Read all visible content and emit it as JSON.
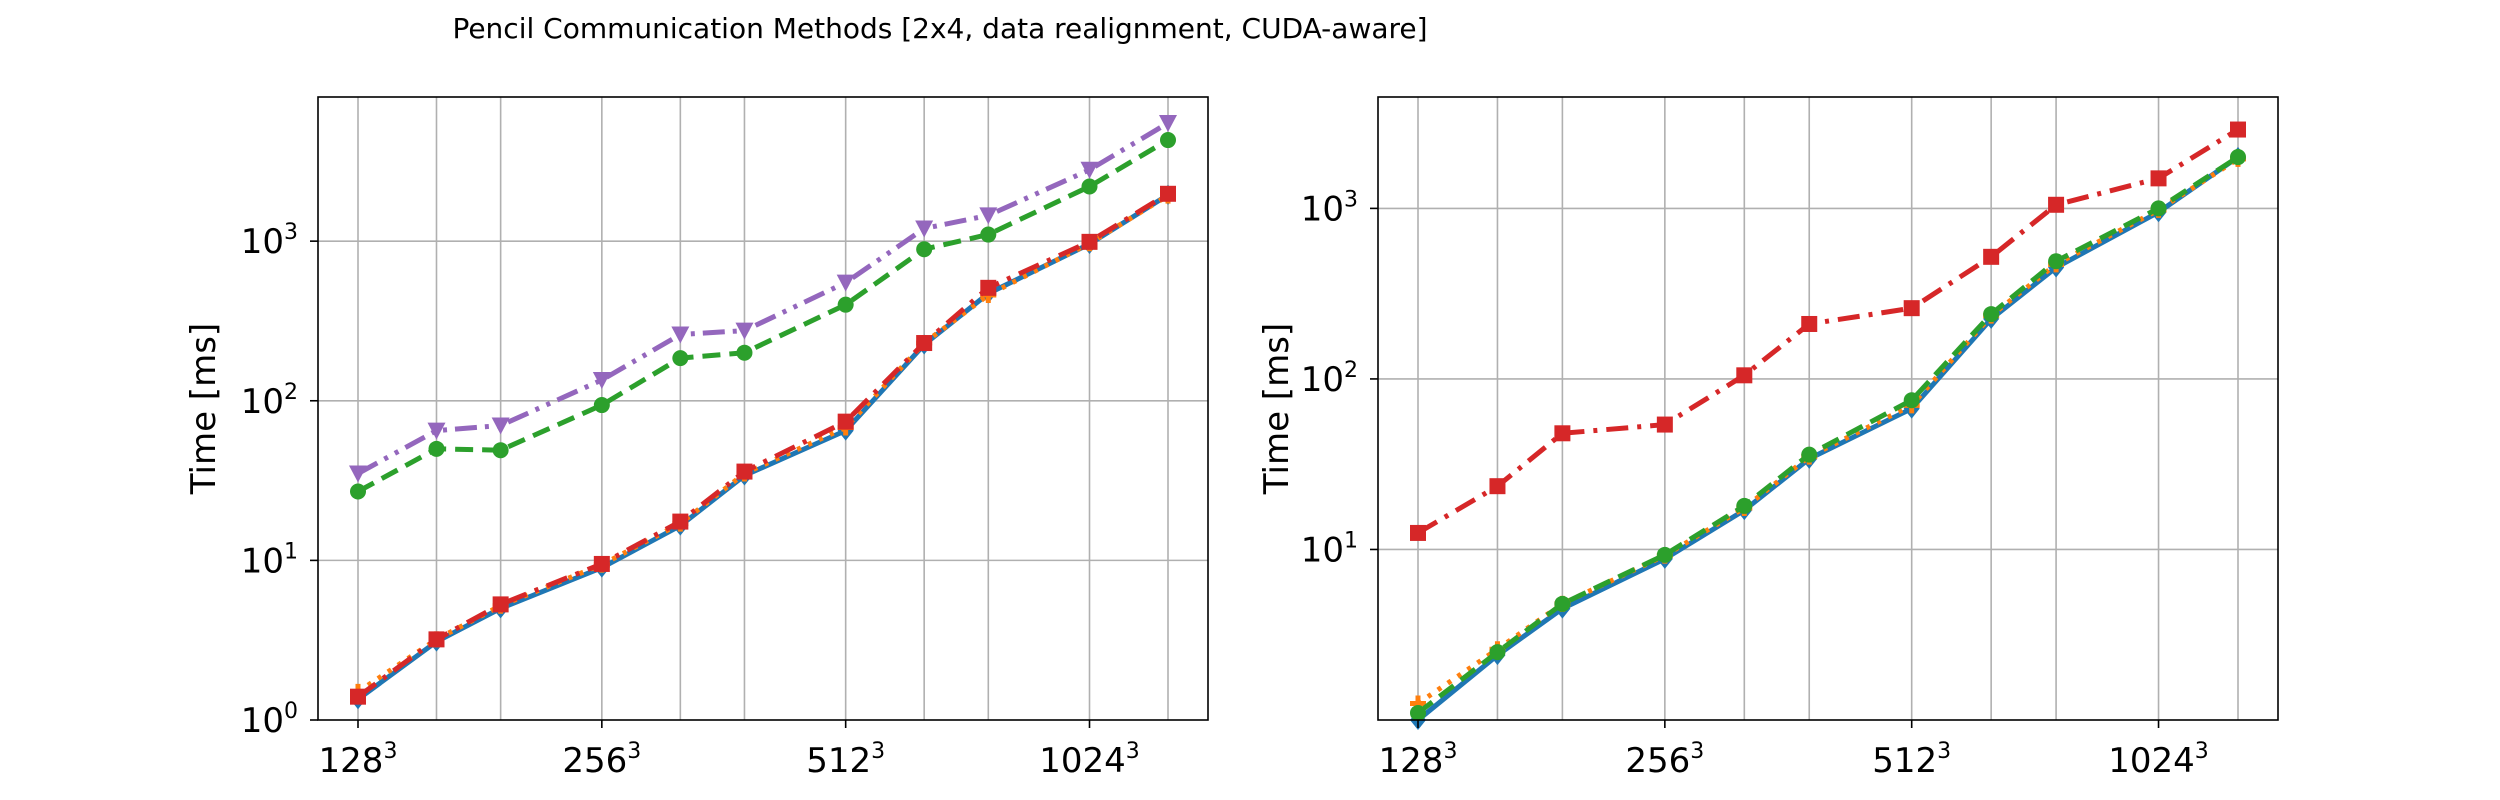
{
  "figure": {
    "title": "Pencil Communication Methods [2x4, data realignment, CUDA-aware]"
  },
  "chart_data": [
    {
      "type": "line",
      "yscale": "log",
      "ylabel": "Time [ms]",
      "ylim": [
        1,
        8000
      ],
      "grid": true,
      "x": [
        128,
        160,
        192,
        256,
        320,
        384,
        512,
        640,
        768,
        1024,
        1280
      ],
      "xticks": [
        {
          "base": "128",
          "exp": "3",
          "x": 128
        },
        {
          "base": "256",
          "exp": "3",
          "x": 256
        },
        {
          "base": "512",
          "exp": "3",
          "x": 512
        },
        {
          "base": "1024",
          "exp": "3",
          "x": 1024
        }
      ],
      "yticks": [
        {
          "base": "10",
          "exp": "0",
          "value": 1
        },
        {
          "base": "10",
          "exp": "1",
          "value": 10
        },
        {
          "base": "10",
          "exp": "2",
          "value": 100
        },
        {
          "base": "10",
          "exp": "3",
          "value": 1000
        }
      ],
      "series": [
        {
          "color": "#1f77b4",
          "dash": "solid",
          "marker": "diamond",
          "values": [
            1.35,
            3.1,
            5.0,
            9.0,
            16.5,
            34,
            65,
            225,
            470,
            960,
            1950
          ]
        },
        {
          "color": "#ff7f0e",
          "dash": "dotted",
          "marker": "plus",
          "values": [
            1.5,
            3.2,
            5.2,
            9.4,
            17.0,
            35,
            68,
            230,
            460,
            970,
            1930
          ]
        },
        {
          "color": "#d62728",
          "dash": "dashdot",
          "marker": "square",
          "values": [
            1.4,
            3.2,
            5.3,
            9.5,
            17.5,
            36,
            74,
            230,
            510,
            990,
            1980
          ]
        },
        {
          "color": "#2ca02c",
          "dash": "dashed",
          "marker": "circle",
          "values": [
            27,
            50,
            49,
            94,
            185,
            200,
            400,
            890,
            1100,
            2200,
            4300
          ]
        },
        {
          "color": "#9467bd",
          "dash": "dashdotdot",
          "marker": "triangle-down",
          "values": [
            35,
            65,
            70,
            135,
            260,
            275,
            550,
            1200,
            1450,
            2800,
            5500
          ]
        }
      ]
    },
    {
      "type": "line",
      "yscale": "log",
      "ylabel": "Time [ms]",
      "ylim": [
        1.0,
        4500
      ],
      "grid": true,
      "x": [
        128,
        160,
        192,
        256,
        320,
        384,
        512,
        640,
        768,
        1024,
        1280
      ],
      "xticks": [
        {
          "base": "128",
          "exp": "3",
          "x": 128
        },
        {
          "base": "256",
          "exp": "3",
          "x": 256
        },
        {
          "base": "512",
          "exp": "3",
          "x": 512
        },
        {
          "base": "1024",
          "exp": "3",
          "x": 1024
        }
      ],
      "yticks": [
        {
          "base": "10",
          "exp": "1",
          "value": 10
        },
        {
          "base": "10",
          "exp": "2",
          "value": 100
        },
        {
          "base": "10",
          "exp": "3",
          "value": 1000
        }
      ],
      "series": [
        {
          "color": "#1f77b4",
          "dash": "solid",
          "marker": "diamond",
          "values": [
            1.0,
            2.4,
            4.5,
            8.8,
            17,
            34,
            67,
            225,
            450,
            950,
            2000
          ]
        },
        {
          "color": "#ff7f0e",
          "dash": "dotted",
          "marker": "plus",
          "values": [
            1.25,
            2.6,
            4.8,
            9.2,
            17.5,
            35,
            70,
            235,
            470,
            980,
            1950
          ]
        },
        {
          "color": "#2ca02c",
          "dash": "dashed",
          "marker": "circle",
          "values": [
            1.1,
            2.5,
            4.8,
            9.3,
            18,
            36,
            75,
            240,
            490,
            1000,
            2000
          ]
        },
        {
          "color": "#d62728",
          "dash": "dashdot",
          "marker": "square",
          "values": [
            12.5,
            23.5,
            48,
            54,
            105,
            210,
            260,
            520,
            1050,
            1500,
            2900
          ]
        }
      ]
    }
  ]
}
